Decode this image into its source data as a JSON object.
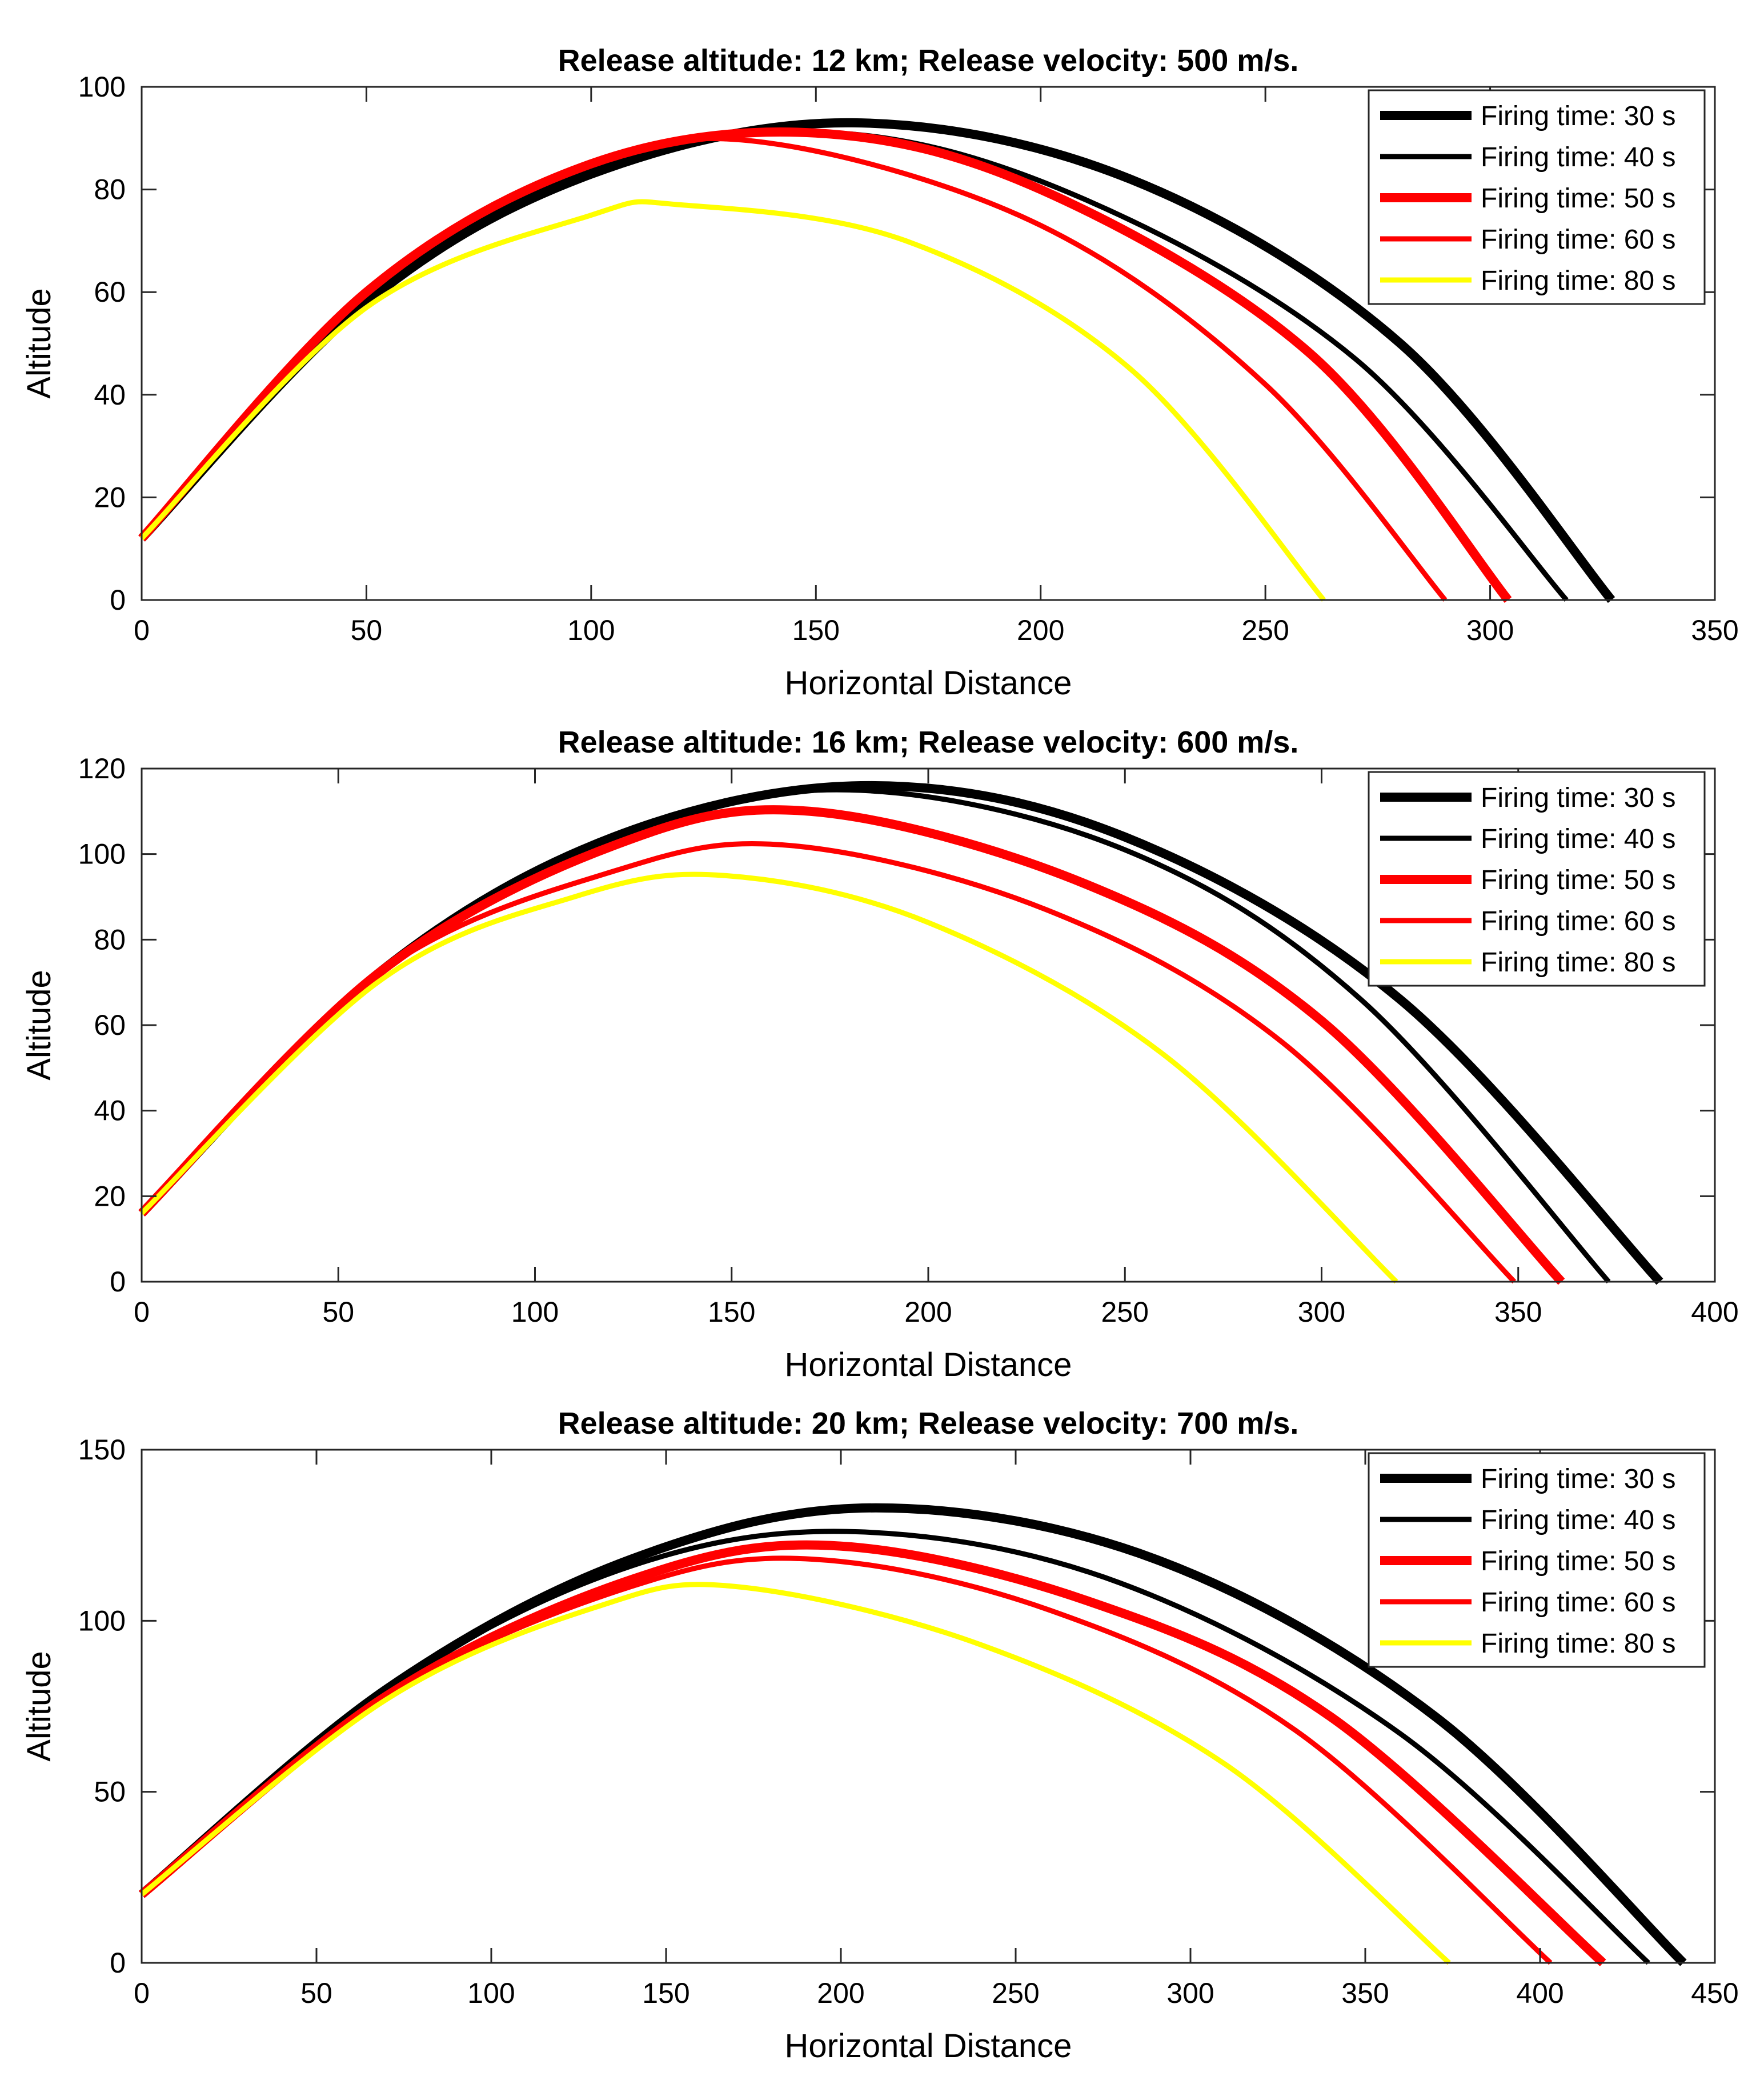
{
  "chart_data": [
    {
      "type": "line",
      "title": "Release altitude: 12 km;   Release velocity: 500 m/s.",
      "xlabel": "Horizontal Distance",
      "ylabel": "Altitude",
      "xlim": [
        0,
        350
      ],
      "ylim": [
        0,
        100
      ],
      "xticks": [
        0,
        50,
        100,
        150,
        200,
        250,
        300,
        350
      ],
      "yticks": [
        0,
        20,
        40,
        60,
        80,
        100
      ],
      "legend_position": "top-right",
      "series": [
        {
          "name": "Firing time: 30 s",
          "color": "#000000",
          "weight": "thick",
          "x": [
            0,
            50,
            100,
            158,
            220,
            280,
            327
          ],
          "y": [
            12,
            58,
            83,
            93,
            82,
            50,
            0
          ]
        },
        {
          "name": "Firing time: 40 s",
          "color": "#000000",
          "weight": "normal",
          "x": [
            0,
            50,
            100,
            155,
            210,
            270,
            317
          ],
          "y": [
            12,
            59,
            84,
            91,
            78,
            47,
            0
          ]
        },
        {
          "name": "Firing time: 50 s",
          "color": "#ff0000",
          "weight": "thick",
          "x": [
            0,
            50,
            100,
            150,
            200,
            260,
            304
          ],
          "y": [
            12,
            60,
            85,
            91,
            80,
            48,
            0
          ]
        },
        {
          "name": "Firing time: 60 s",
          "color": "#ff0000",
          "weight": "normal",
          "x": [
            0,
            50,
            100,
            140,
            200,
            250,
            290
          ],
          "y": [
            12,
            60,
            85,
            89,
            73,
            42,
            0
          ]
        },
        {
          "name": "Firing time: 80 s",
          "color": "#ffff00",
          "weight": "normal",
          "x": [
            0,
            50,
            100,
            120,
            170,
            220,
            263
          ],
          "y": [
            12,
            57,
            75,
            77,
            70,
            45,
            0
          ]
        }
      ]
    },
    {
      "type": "line",
      "title": "Release altitude: 16 km;   Release velocity: 600 m/s.",
      "xlabel": "Horizontal Distance",
      "ylabel": "Altitude",
      "xlim": [
        0,
        400
      ],
      "ylim": [
        0,
        120
      ],
      "xticks": [
        0,
        50,
        100,
        150,
        200,
        250,
        300,
        350,
        400
      ],
      "yticks": [
        0,
        20,
        40,
        60,
        80,
        100,
        120
      ],
      "legend_position": "top-right",
      "series": [
        {
          "name": "Firing time: 30 s",
          "color": "#000000",
          "weight": "thick",
          "x": [
            0,
            60,
            120,
            185,
            250,
            320,
            386
          ],
          "y": [
            16,
            72,
            104,
            116,
            104,
            66,
            0
          ]
        },
        {
          "name": "Firing time: 40 s",
          "color": "#000000",
          "weight": "normal",
          "x": [
            0,
            60,
            120,
            180,
            250,
            310,
            373
          ],
          "y": [
            16,
            72,
            104,
            115,
            101,
            66,
            0
          ]
        },
        {
          "name": "Firing time: 50 s",
          "color": "#ff0000",
          "weight": "thick",
          "x": [
            0,
            60,
            120,
            170,
            240,
            300,
            361
          ],
          "y": [
            16,
            72,
            102,
            110,
            93,
            61,
            0
          ]
        },
        {
          "name": "Firing time: 60 s",
          "color": "#ff0000",
          "weight": "normal",
          "x": [
            0,
            60,
            120,
            165,
            230,
            290,
            349
          ],
          "y": [
            16,
            72,
            96,
            102,
            87,
            56,
            0
          ]
        },
        {
          "name": "Firing time: 80 s",
          "color": "#ffff00",
          "weight": "normal",
          "x": [
            0,
            60,
            110,
            148,
            200,
            260,
            319
          ],
          "y": [
            16,
            70,
            90,
            95,
            84,
            53,
            0
          ]
        }
      ]
    },
    {
      "type": "line",
      "title": "Release altitude: 20 km;   Release velocity: 700 m/s.",
      "xlabel": "Horizontal Distance",
      "ylabel": "Altitude",
      "xlim": [
        0,
        450
      ],
      "ylim": [
        0,
        150
      ],
      "xticks": [
        0,
        50,
        100,
        150,
        200,
        250,
        300,
        350,
        400,
        450
      ],
      "yticks": [
        0,
        50,
        100,
        150
      ],
      "legend_position": "top-right",
      "series": [
        {
          "name": "Firing time: 30 s",
          "color": "#000000",
          "weight": "thick",
          "x": [
            0,
            70,
            140,
            210,
            290,
            370,
            441
          ],
          "y": [
            20,
            80,
            118,
            133,
            118,
            72,
            0
          ]
        },
        {
          "name": "Firing time: 40 s",
          "color": "#000000",
          "weight": "normal",
          "x": [
            0,
            70,
            140,
            205,
            280,
            360,
            431
          ],
          "y": [
            20,
            80,
            116,
            126,
            111,
            67,
            0
          ]
        },
        {
          "name": "Firing time: 50 s",
          "color": "#ff0000",
          "weight": "thick",
          "x": [
            0,
            70,
            140,
            197,
            270,
            340,
            418
          ],
          "y": [
            20,
            78,
            112,
            122,
            106,
            72,
            0
          ]
        },
        {
          "name": "Firing time: 60 s",
          "color": "#ff0000",
          "weight": "normal",
          "x": [
            0,
            70,
            140,
            192,
            260,
            330,
            403
          ],
          "y": [
            20,
            78,
            110,
            118,
            103,
            68,
            0
          ]
        },
        {
          "name": "Firing time: 80 s",
          "color": "#ffff00",
          "weight": "normal",
          "x": [
            0,
            70,
            130,
            170,
            240,
            310,
            374
          ],
          "y": [
            20,
            77,
            104,
            110,
            93,
            58,
            0
          ]
        }
      ]
    }
  ]
}
